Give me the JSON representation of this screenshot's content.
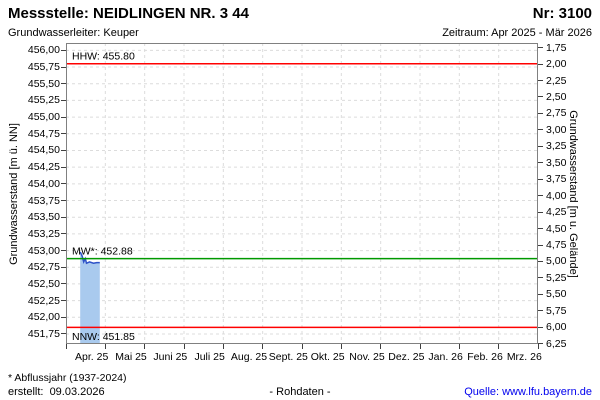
{
  "header": {
    "title": "Messstelle: NEIDLINGEN NR. 3 44",
    "number": "Nr: 3100",
    "aquifer": "Grundwasserleiter: Keuper",
    "period": "Zeitraum: Apr 2025 - Mär 2026"
  },
  "footer": {
    "note": "* Abflussjahr (1937-2024)",
    "created": "erstellt:  09.03.2026",
    "center": "- Rohdaten -",
    "source": "Quelle: www.lfu.bayern.de"
  },
  "chart_data": {
    "type": "line",
    "title": "",
    "x_axis": {
      "months": 12,
      "categories": [
        "Apr. 25",
        "Mai 25",
        "Juni 25",
        "Juli 25",
        "Aug. 25",
        "Sept. 25",
        "Okt. 25",
        "Nov. 25",
        "Dez. 25",
        "Jan. 26",
        "Feb. 26",
        "Mrz. 26"
      ]
    },
    "y_left": {
      "label": "Grundwasserstand [m ü. NN]",
      "top_value": 456.11,
      "bottom_value": 451.6,
      "ticks": [
        {
          "value": 456.0,
          "label": "456,00"
        },
        {
          "value": 455.75,
          "label": "455,75"
        },
        {
          "value": 455.5,
          "label": "455,50"
        },
        {
          "value": 455.25,
          "label": "455,25"
        },
        {
          "value": 455.0,
          "label": "455,00"
        },
        {
          "value": 454.75,
          "label": "454,75"
        },
        {
          "value": 454.5,
          "label": "454,50"
        },
        {
          "value": 454.25,
          "label": "454,25"
        },
        {
          "value": 454.0,
          "label": "454,00"
        },
        {
          "value": 453.75,
          "label": "453,75"
        },
        {
          "value": 453.5,
          "label": "453,50"
        },
        {
          "value": 453.25,
          "label": "453,25"
        },
        {
          "value": 453.0,
          "label": "453,00"
        },
        {
          "value": 452.75,
          "label": "452,75"
        },
        {
          "value": 452.5,
          "label": "452,50"
        },
        {
          "value": 452.25,
          "label": "452,25"
        },
        {
          "value": 452.0,
          "label": "452,00"
        },
        {
          "value": 451.75,
          "label": "451,75"
        }
      ]
    },
    "y_right": {
      "label": "Grundwasserstand [m u. Gelände]",
      "top_value": 1.68,
      "bottom_value": 6.254,
      "ticks": [
        {
          "value": 1.75,
          "label": "1,75"
        },
        {
          "value": 2.0,
          "label": "2,00"
        },
        {
          "value": 2.25,
          "label": "2,25"
        },
        {
          "value": 2.5,
          "label": "2,50"
        },
        {
          "value": 2.75,
          "label": "2,75"
        },
        {
          "value": 3.0,
          "label": "3,00"
        },
        {
          "value": 3.25,
          "label": "3,25"
        },
        {
          "value": 3.5,
          "label": "3,50"
        },
        {
          "value": 3.75,
          "label": "3,75"
        },
        {
          "value": 4.0,
          "label": "4,00"
        },
        {
          "value": 4.25,
          "label": "4,25"
        },
        {
          "value": 4.5,
          "label": "4,50"
        },
        {
          "value": 4.75,
          "label": "4,75"
        },
        {
          "value": 5.0,
          "label": "5,00"
        },
        {
          "value": 5.25,
          "label": "5,25"
        },
        {
          "value": 5.5,
          "label": "5,50"
        },
        {
          "value": 5.75,
          "label": "5,75"
        },
        {
          "value": 6.0,
          "label": "6,00"
        },
        {
          "value": 6.25,
          "label": "6,25"
        }
      ]
    },
    "reference_lines": [
      {
        "name": "HHW",
        "label": "HHW: 455.80",
        "value": 455.8,
        "color": "#ff0000",
        "label_position": "above"
      },
      {
        "name": "MW",
        "label": "MW*: 452.88",
        "value": 452.88,
        "color": "#009900",
        "label_position": "above"
      },
      {
        "name": "NNW",
        "label": "NNW: 451.85",
        "value": 451.85,
        "color": "#ff0000",
        "label_position": "below"
      }
    ],
    "series": [
      {
        "name": "Grundwasserstand Rohdaten",
        "line_color": "#2d52c8",
        "fill_color": "#a9caee",
        "fill_to_bottom": true,
        "points": [
          [
            0.36,
            452.98
          ],
          [
            0.41,
            452.92
          ],
          [
            0.45,
            452.83
          ],
          [
            0.49,
            452.88
          ],
          [
            0.52,
            452.81
          ],
          [
            0.6,
            452.83
          ],
          [
            0.7,
            452.81
          ],
          [
            0.78,
            452.82
          ],
          [
            0.86,
            452.82
          ]
        ]
      }
    ],
    "grid_color": "#dcdcdc",
    "border_color": "#808080",
    "tick_color": "#404040"
  }
}
